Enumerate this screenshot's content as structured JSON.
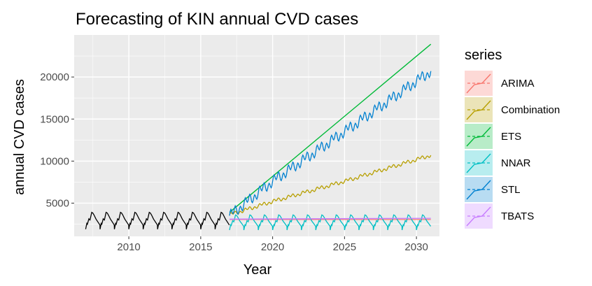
{
  "chart_data": {
    "type": "line",
    "title": "Forecasting of KIN annual CVD cases",
    "xlabel": "Year",
    "ylabel": "annual CVD cases",
    "xlim": [
      2006.2,
      2031.6
    ],
    "ylim": [
      1050,
      25000
    ],
    "x_ticks": [
      2010,
      2015,
      2020,
      2025,
      2030
    ],
    "x_tick_labels": [
      "2010",
      "2015",
      "2020",
      "2025",
      "2030"
    ],
    "y_ticks": [
      5000,
      10000,
      15000,
      20000
    ],
    "y_tick_labels": [
      "5000",
      "10000",
      "15000",
      "20000"
    ],
    "grid": true,
    "legend_title": "series",
    "legend_position": "right",
    "panel_background": "#ebebeb",
    "historical": {
      "color": "#000000",
      "start": 2007.0,
      "end": 2017.0,
      "seasonal_low": 1900,
      "seasonal_high": 3900,
      "period_years": 1
    },
    "series": [
      {
        "name": "ARIMA",
        "color": "#F8766D",
        "x": [
          2017.0,
          2031.0
        ],
        "y": [
          3050,
          3050
        ]
      },
      {
        "name": "Combination",
        "color": "#B79F00",
        "x": [
          2017.0,
          2020.0,
          2025.0,
          2031.0
        ],
        "y": [
          3600,
          5200,
          7600,
          10700
        ]
      },
      {
        "name": "ETS",
        "color": "#00BA38",
        "x": [
          2017.0,
          2031.0
        ],
        "y": [
          3900,
          23900
        ]
      },
      {
        "name": "NNAR",
        "color": "#00BFC4",
        "x": [
          2017.0,
          2031.0
        ],
        "seasonal_low": 1800,
        "seasonal_high": 3600
      },
      {
        "name": "STL",
        "color": "#0080D0",
        "x": [
          2017.0,
          2020.0,
          2025.0,
          2031.0
        ],
        "y": [
          3500,
          7600,
          13500,
          20700
        ]
      },
      {
        "name": "TBATS",
        "color": "#C77CFF",
        "x": [
          2017.0,
          2031.0
        ],
        "y": [
          3100,
          3200
        ]
      }
    ]
  }
}
